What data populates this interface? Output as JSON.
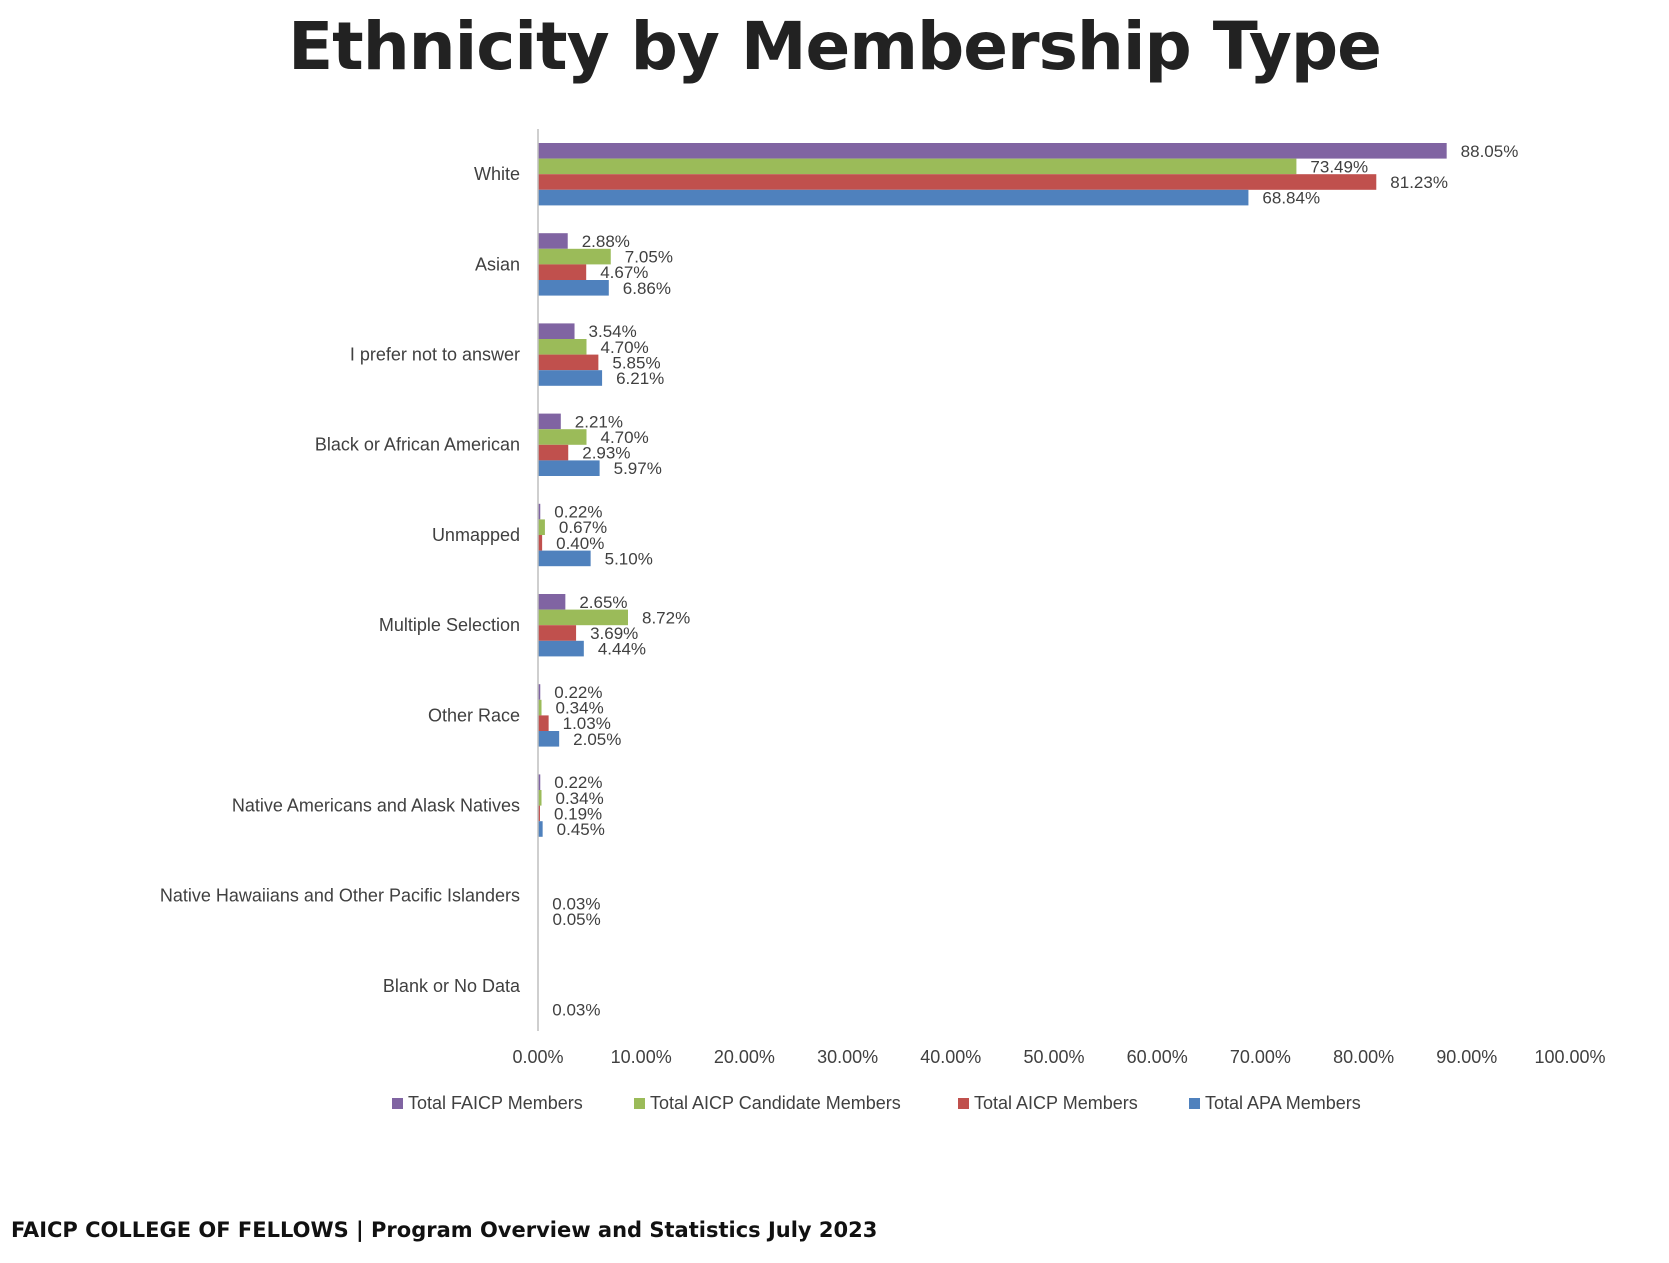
{
  "title": "Ethnicity by Membership Type",
  "footer": "FAICP COLLEGE OF FELLOWS | Program Overview and Statistics July 2023",
  "chart_data": {
    "type": "bar",
    "orientation": "horizontal",
    "title": "Ethnicity by Membership Type",
    "categories": [
      "White",
      "Asian",
      "I prefer not to answer",
      "Black or African American",
      "Unmapped",
      "Multiple Selection",
      "Other Race",
      "Native Americans and Alask Natives",
      "Native Hawaiians and Other Pacific Islanders",
      "Blank or No Data"
    ],
    "series": [
      {
        "name": "Total FAICP Members",
        "color": "#8064a2",
        "values": [
          88.05,
          2.88,
          3.54,
          2.21,
          0.22,
          2.65,
          0.22,
          0.22,
          null,
          null
        ],
        "labels": [
          "88.05%",
          "2.88%",
          "3.54%",
          "2.21%",
          "0.22%",
          "2.65%",
          "0.22%",
          "0.22%",
          "",
          ""
        ]
      },
      {
        "name": "Total AICP Candidate Members",
        "color": "#9bbb59",
        "values": [
          73.49,
          7.05,
          4.7,
          4.7,
          0.67,
          8.72,
          0.34,
          0.34,
          null,
          null
        ],
        "labels": [
          "73.49%",
          "7.05%",
          "4.70%",
          "4.70%",
          "0.67%",
          "8.72%",
          "0.34%",
          "0.34%",
          "",
          ""
        ]
      },
      {
        "name": "Total AICP Members",
        "color": "#c0504d",
        "values": [
          81.23,
          4.67,
          5.85,
          2.93,
          0.4,
          3.69,
          1.03,
          0.19,
          0.03,
          null
        ],
        "labels": [
          "81.23%",
          "4.67%",
          "5.85%",
          "2.93%",
          "0.40%",
          "3.69%",
          "1.03%",
          "0.19%",
          "0.03%",
          ""
        ]
      },
      {
        "name": "Total APA Members",
        "color": "#4f81bd",
        "values": [
          68.84,
          6.86,
          6.21,
          5.97,
          5.1,
          4.44,
          2.05,
          0.45,
          0.05,
          0.03
        ],
        "labels": [
          "68.84%",
          "6.86%",
          "6.21%",
          "5.97%",
          "5.10%",
          "4.44%",
          "2.05%",
          "0.45%",
          "0.05%",
          "0.03%"
        ]
      }
    ],
    "xlim": [
      0,
      100
    ],
    "xticks": [
      "0.00%",
      "10.00%",
      "20.00%",
      "30.00%",
      "40.00%",
      "50.00%",
      "60.00%",
      "70.00%",
      "80.00%",
      "90.00%",
      "100.00%"
    ],
    "legend": [
      "Total FAICP Members",
      "Total AICP Candidate Members",
      "Total AICP Members",
      "Total APA Members"
    ],
    "legend_position": "bottom",
    "grid": false
  }
}
